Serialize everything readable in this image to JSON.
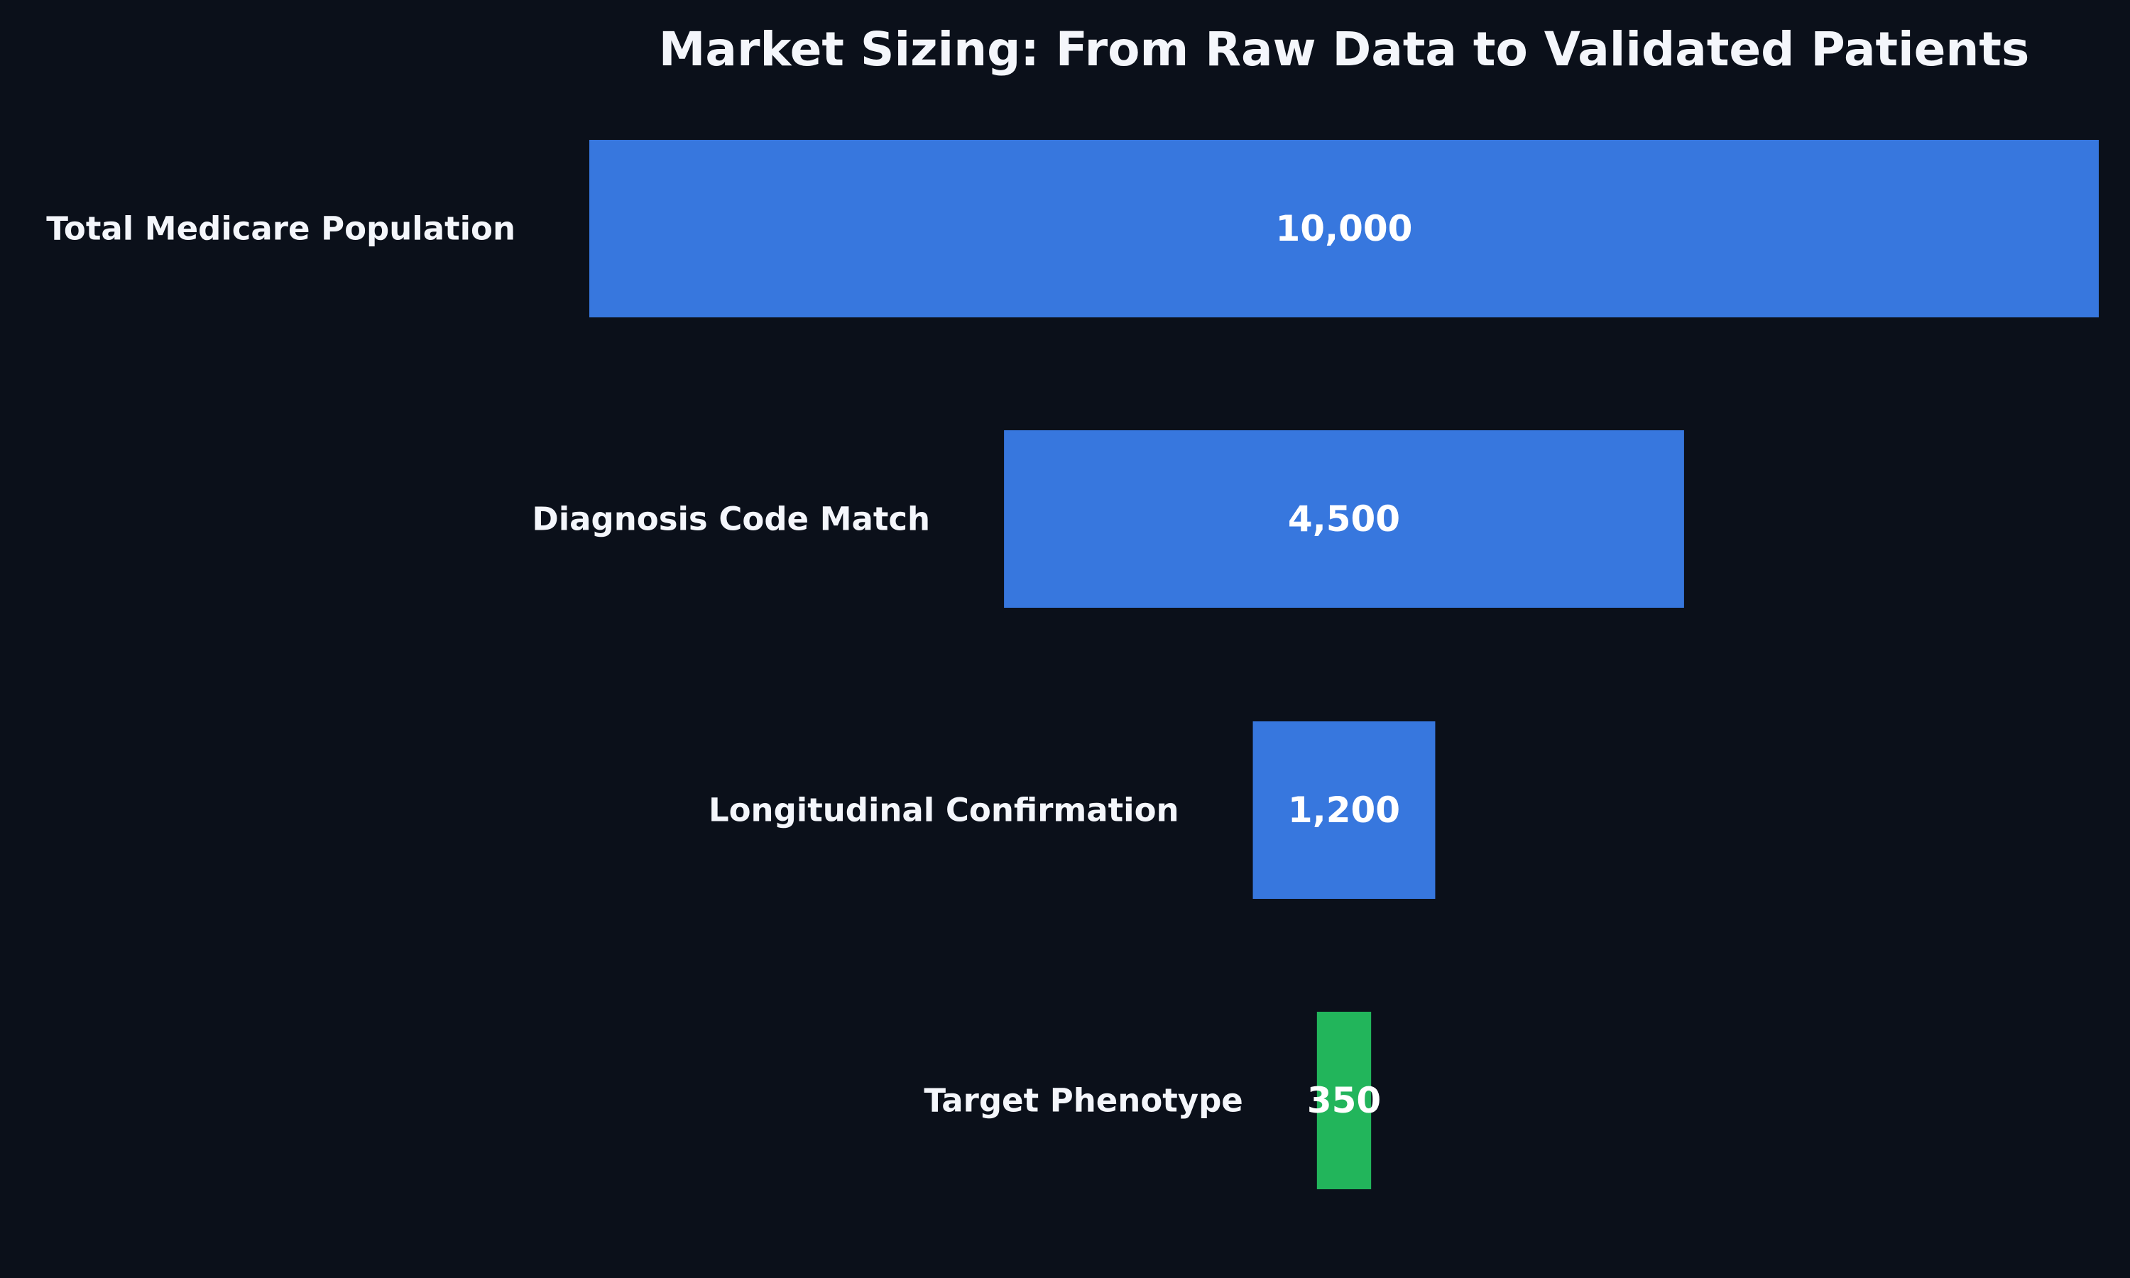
{
  "chart_data": {
    "type": "bar",
    "orientation": "horizontal",
    "style": "funnel",
    "title": "Market Sizing: From Raw Data to Validated Patients",
    "xlabel": "",
    "ylabel": "",
    "grid": false,
    "categories": [
      "Total Medicare Population",
      "Diagnosis Code Match",
      "Longitudinal Confirmation",
      "Target Phenotype"
    ],
    "values": [
      10000,
      4500,
      1200,
      350
    ],
    "value_labels": [
      "10,000",
      "4,500",
      "1,200",
      "350"
    ],
    "colors": [
      "#3777de",
      "#3777de",
      "#3777de",
      "#22b55b"
    ],
    "background": "#0b101a",
    "text_color": "#f4f6fb"
  }
}
